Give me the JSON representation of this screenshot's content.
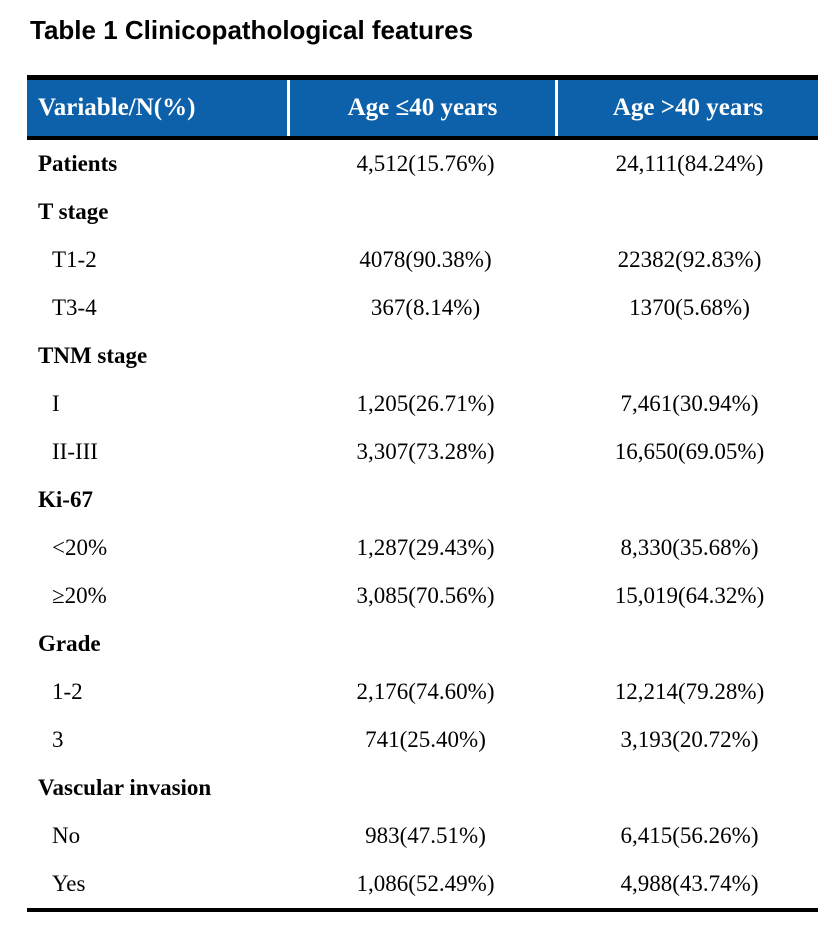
{
  "title": "Table 1 Clinicopathological features",
  "colors": {
    "header_bg": "#0D60AA",
    "header_text": "#FFFFFF",
    "body_text": "#000000",
    "rule": "#000000"
  },
  "table": {
    "columns": [
      "Variable/N(%)",
      "Age ≤40 years",
      "Age >40 years"
    ],
    "rows": [
      {
        "label": "Patients",
        "bold": true,
        "values": [
          "4,512(15.76%)",
          "24,111(84.24%)"
        ]
      },
      {
        "label": "T stage",
        "bold": true,
        "values": [
          "",
          ""
        ]
      },
      {
        "label": "T1-2",
        "bold": false,
        "values": [
          "4078(90.38%)",
          "22382(92.83%)"
        ]
      },
      {
        "label": "T3-4",
        "bold": false,
        "values": [
          "367(8.14%)",
          "1370(5.68%)"
        ]
      },
      {
        "label": "TNM stage",
        "bold": true,
        "values": [
          "",
          ""
        ]
      },
      {
        "label": "I",
        "bold": false,
        "values": [
          "1,205(26.71%)",
          "7,461(30.94%)"
        ]
      },
      {
        "label": "II-III",
        "bold": false,
        "values": [
          "3,307(73.28%)",
          "16,650(69.05%)"
        ]
      },
      {
        "label": "Ki-67",
        "bold": true,
        "values": [
          "",
          ""
        ]
      },
      {
        "label": "<20%",
        "bold": false,
        "values": [
          "1,287(29.43%)",
          "8,330(35.68%)"
        ]
      },
      {
        "label": "≥20%",
        "bold": false,
        "values": [
          "3,085(70.56%)",
          "15,019(64.32%)"
        ]
      },
      {
        "label": "Grade",
        "bold": true,
        "values": [
          "",
          ""
        ]
      },
      {
        "label": "1-2",
        "bold": false,
        "values": [
          "2,176(74.60%)",
          "12,214(79.28%)"
        ]
      },
      {
        "label": "3",
        "bold": false,
        "values": [
          "741(25.40%)",
          "3,193(20.72%)"
        ]
      },
      {
        "label": "Vascular invasion",
        "bold": true,
        "values": [
          "",
          ""
        ]
      },
      {
        "label": "No",
        "bold": false,
        "values": [
          "983(47.51%)",
          "6,415(56.26%)"
        ]
      },
      {
        "label": "Yes",
        "bold": false,
        "values": [
          "1,086(52.49%)",
          "4,988(43.74%)"
        ]
      }
    ]
  }
}
